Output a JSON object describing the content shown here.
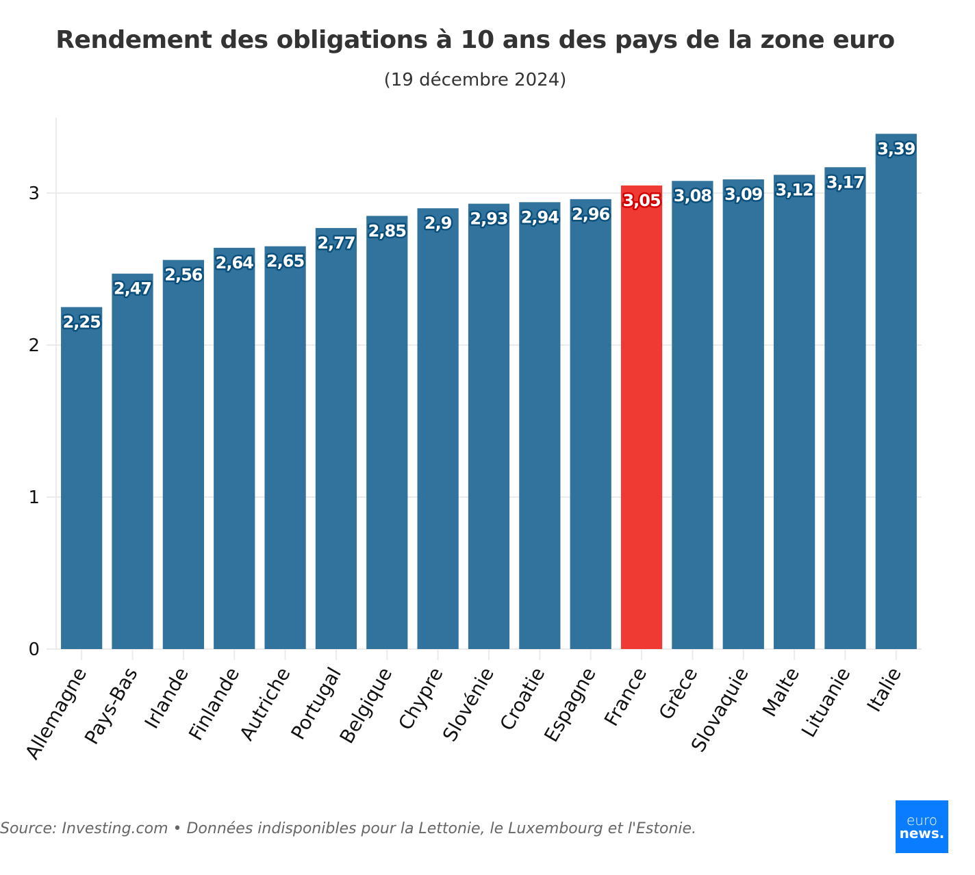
{
  "chart_data": {
    "type": "bar",
    "title": "Rendement des obligations à 10 ans des pays de la zone euro",
    "subtitle": "(19 décembre 2024)",
    "xlabel": "",
    "ylabel": "",
    "categories": [
      "Allemagne",
      "Pays-Bas",
      "Irlande",
      "Finlande",
      "Autriche",
      "Portugal",
      "Belgique",
      "Chypre",
      "Slovénie",
      "Croatie",
      "Espagne",
      "France",
      "Grèce",
      "Slovaquie",
      "Malte",
      "Lituanie",
      "Italie"
    ],
    "values": [
      2.25,
      2.47,
      2.56,
      2.64,
      2.65,
      2.77,
      2.85,
      2.9,
      2.93,
      2.94,
      2.96,
      3.05,
      3.08,
      3.09,
      3.12,
      3.17,
      3.39
    ],
    "labels": [
      "2,25",
      "2,47",
      "2,56",
      "2,64",
      "2,65",
      "2,77",
      "2,85",
      "2,9",
      "2,93",
      "2,94",
      "2,96",
      "3,05",
      "3,08",
      "3,09",
      "3,12",
      "3,17",
      "3,39"
    ],
    "highlight": "France",
    "colors": {
      "default": "#31739c",
      "highlight": "#ee3a33",
      "default_outline": "#0b4f7d",
      "highlight_outline": "#d40000"
    },
    "yticks": [
      0,
      1,
      2,
      3
    ],
    "ylim": [
      0,
      3.5
    ],
    "grid": true,
    "legend": "none"
  },
  "footer": {
    "source": "Source: Investing.com • Données indisponibles pour la Lettonie, le Luxembourg et l'Estonie.",
    "logo_line1": "euro",
    "logo_line2": "news."
  }
}
